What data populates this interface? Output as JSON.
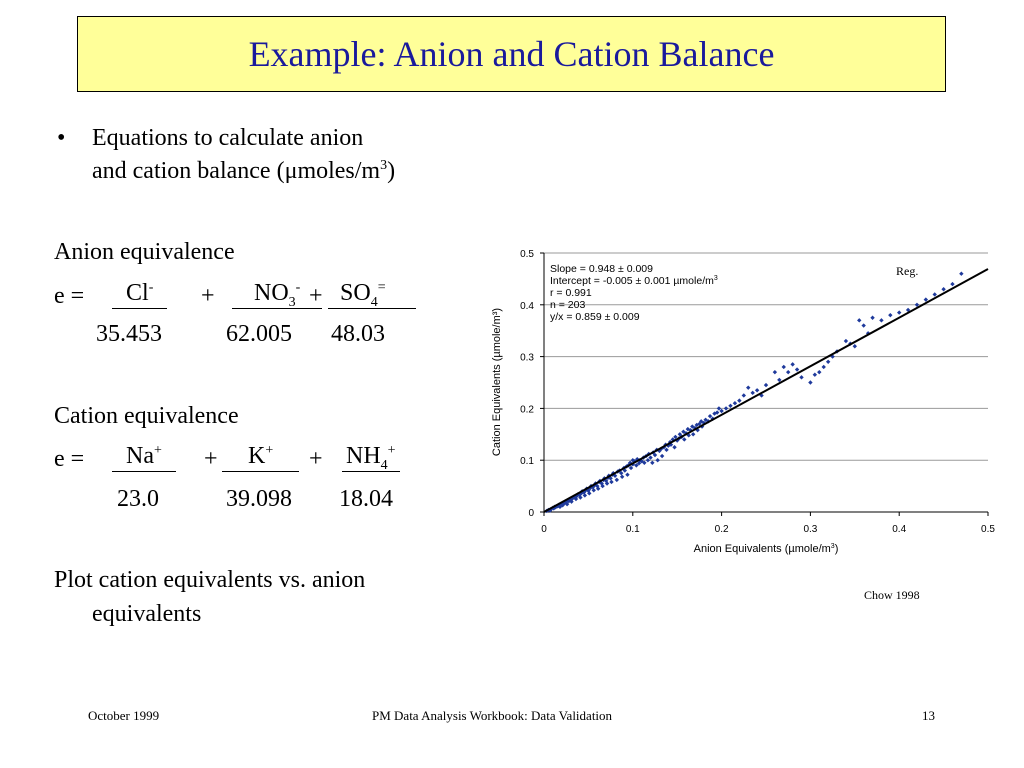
{
  "slide": {
    "title": "Example: Anion and Cation Balance",
    "bullet_symbol": "•",
    "bullet_line1": "Equations to calculate anion",
    "bullet_line2_prefix": "and cation balance (",
    "bullet_mu": "μ",
    "bullet_unit": "moles/m",
    "bullet_unit_sup": "3",
    "bullet_close": ")",
    "anion_heading": "Anion equivalence",
    "anion_e": "e =",
    "anion_plus1": "+",
    "anion_plus2": "+",
    "cl": "Cl",
    "cl_sup": "-",
    "no3": "NO",
    "no3_sub": "3",
    "no3_sup": "-",
    "so4": "SO",
    "so4_sub": "4",
    "so4_sup": "=",
    "anion_d1": "35.453",
    "anion_d2": "62.005",
    "anion_d3": "48.03",
    "cation_heading": "Cation equivalence",
    "cation_e": "e =",
    "cation_plus1": "+",
    "cation_plus2": "+",
    "na": "Na",
    "na_sup": "+",
    "k": "K",
    "k_sup": "+",
    "nh4": "NH",
    "nh4_sub": "4",
    "nh4_sup": "+",
    "cation_d1": "23.0",
    "cation_d2": "39.098",
    "cation_d3": "18.04",
    "plot_line1": "Plot cation equivalents vs. anion",
    "plot_line2": "equivalents",
    "reg_label": "Reg.",
    "chow_label": "Chow 1998"
  },
  "footer": {
    "date": "October 1999",
    "center": "PM Data Analysis Workbook:  Data Validation",
    "page": "13"
  },
  "chart_data": {
    "type": "scatter",
    "xlabel_main": "Anion Equivalents (µmole/m",
    "xlabel_sup": "3",
    "xlabel_close": ")",
    "ylabel": "Cation Equivalents (µmole/m³)",
    "xlim": [
      0,
      0.5
    ],
    "ylim": [
      0,
      0.5
    ],
    "xticks": [
      "0",
      "0.1",
      "0.2",
      "0.3",
      "0.4",
      "0.5"
    ],
    "yticks": [
      "0",
      "0.1",
      "0.2",
      "0.3",
      "0.4",
      "0.5"
    ],
    "grid": "horizontal",
    "point_color": "#1f3a9c",
    "annotation_lines": [
      "Slope = 0.948 ± 0.009",
      "Intercept = -0.005 ± 0.001 µmole/m",
      "r = 0.991",
      "n = 203",
      "y/x = 0.859 ± 0.009"
    ],
    "annotation_sup": "3",
    "regression": {
      "slope": 0.948,
      "intercept": -0.005
    },
    "points": [
      [
        0.003,
        0.002
      ],
      [
        0.005,
        0.004
      ],
      [
        0.007,
        0.003
      ],
      [
        0.008,
        0.006
      ],
      [
        0.01,
        0.008
      ],
      [
        0.011,
        0.007
      ],
      [
        0.012,
        0.01
      ],
      [
        0.013,
        0.009
      ],
      [
        0.015,
        0.011
      ],
      [
        0.016,
        0.012
      ],
      [
        0.017,
        0.014
      ],
      [
        0.018,
        0.01
      ],
      [
        0.02,
        0.016
      ],
      [
        0.021,
        0.013
      ],
      [
        0.022,
        0.018
      ],
      [
        0.023,
        0.017
      ],
      [
        0.025,
        0.02
      ],
      [
        0.026,
        0.015
      ],
      [
        0.027,
        0.022
      ],
      [
        0.028,
        0.021
      ],
      [
        0.03,
        0.024
      ],
      [
        0.031,
        0.02
      ],
      [
        0.032,
        0.026
      ],
      [
        0.033,
        0.028
      ],
      [
        0.035,
        0.03
      ],
      [
        0.036,
        0.025
      ],
      [
        0.037,
        0.031
      ],
      [
        0.038,
        0.034
      ],
      [
        0.04,
        0.033
      ],
      [
        0.041,
        0.028
      ],
      [
        0.042,
        0.036
      ],
      [
        0.043,
        0.04
      ],
      [
        0.045,
        0.038
      ],
      [
        0.046,
        0.032
      ],
      [
        0.047,
        0.042
      ],
      [
        0.048,
        0.045
      ],
      [
        0.05,
        0.041
      ],
      [
        0.051,
        0.036
      ],
      [
        0.052,
        0.046
      ],
      [
        0.053,
        0.05
      ],
      [
        0.055,
        0.048
      ],
      [
        0.056,
        0.042
      ],
      [
        0.057,
        0.052
      ],
      [
        0.058,
        0.055
      ],
      [
        0.06,
        0.05
      ],
      [
        0.061,
        0.045
      ],
      [
        0.062,
        0.058
      ],
      [
        0.063,
        0.06
      ],
      [
        0.065,
        0.055
      ],
      [
        0.066,
        0.05
      ],
      [
        0.067,
        0.062
      ],
      [
        0.068,
        0.065
      ],
      [
        0.07,
        0.06
      ],
      [
        0.071,
        0.055
      ],
      [
        0.072,
        0.066
      ],
      [
        0.073,
        0.07
      ],
      [
        0.075,
        0.065
      ],
      [
        0.076,
        0.058
      ],
      [
        0.077,
        0.072
      ],
      [
        0.078,
        0.075
      ],
      [
        0.08,
        0.07
      ],
      [
        0.082,
        0.062
      ],
      [
        0.083,
        0.078
      ],
      [
        0.085,
        0.08
      ],
      [
        0.087,
        0.075
      ],
      [
        0.088,
        0.068
      ],
      [
        0.09,
        0.085
      ],
      [
        0.091,
        0.08
      ],
      [
        0.093,
        0.088
      ],
      [
        0.094,
        0.072
      ],
      [
        0.095,
        0.09
      ],
      [
        0.097,
        0.095
      ],
      [
        0.098,
        0.085
      ],
      [
        0.1,
        0.092
      ],
      [
        0.1,
        0.1
      ],
      [
        0.102,
        0.098
      ],
      [
        0.104,
        0.09
      ],
      [
        0.105,
        0.102
      ],
      [
        0.107,
        0.094
      ],
      [
        0.108,
        0.1
      ],
      [
        0.11,
        0.098
      ],
      [
        0.112,
        0.105
      ],
      [
        0.113,
        0.095
      ],
      [
        0.115,
        0.108
      ],
      [
        0.117,
        0.1
      ],
      [
        0.118,
        0.112
      ],
      [
        0.12,
        0.105
      ],
      [
        0.122,
        0.095
      ],
      [
        0.123,
        0.115
      ],
      [
        0.125,
        0.11
      ],
      [
        0.127,
        0.12
      ],
      [
        0.128,
        0.1
      ],
      [
        0.13,
        0.118
      ],
      [
        0.132,
        0.122
      ],
      [
        0.133,
        0.108
      ],
      [
        0.135,
        0.125
      ],
      [
        0.137,
        0.13
      ],
      [
        0.138,
        0.12
      ],
      [
        0.14,
        0.128
      ],
      [
        0.142,
        0.135
      ],
      [
        0.143,
        0.13
      ],
      [
        0.145,
        0.14
      ],
      [
        0.147,
        0.125
      ],
      [
        0.148,
        0.145
      ],
      [
        0.15,
        0.138
      ],
      [
        0.152,
        0.142
      ],
      [
        0.153,
        0.15
      ],
      [
        0.155,
        0.145
      ],
      [
        0.157,
        0.155
      ],
      [
        0.158,
        0.14
      ],
      [
        0.16,
        0.152
      ],
      [
        0.162,
        0.16
      ],
      [
        0.163,
        0.148
      ],
      [
        0.165,
        0.158
      ],
      [
        0.167,
        0.165
      ],
      [
        0.168,
        0.15
      ],
      [
        0.17,
        0.162
      ],
      [
        0.172,
        0.168
      ],
      [
        0.173,
        0.158
      ],
      [
        0.175,
        0.17
      ],
      [
        0.177,
        0.175
      ],
      [
        0.178,
        0.165
      ],
      [
        0.18,
        0.172
      ],
      [
        0.182,
        0.178
      ],
      [
        0.185,
        0.175
      ],
      [
        0.187,
        0.185
      ],
      [
        0.19,
        0.18
      ],
      [
        0.192,
        0.19
      ],
      [
        0.195,
        0.192
      ],
      [
        0.197,
        0.2
      ],
      [
        0.2,
        0.195
      ],
      [
        0.205,
        0.2
      ],
      [
        0.21,
        0.205
      ],
      [
        0.215,
        0.21
      ],
      [
        0.22,
        0.215
      ],
      [
        0.225,
        0.225
      ],
      [
        0.23,
        0.24
      ],
      [
        0.235,
        0.23
      ],
      [
        0.24,
        0.235
      ],
      [
        0.245,
        0.225
      ],
      [
        0.25,
        0.245
      ],
      [
        0.26,
        0.27
      ],
      [
        0.265,
        0.255
      ],
      [
        0.27,
        0.28
      ],
      [
        0.275,
        0.27
      ],
      [
        0.28,
        0.285
      ],
      [
        0.285,
        0.275
      ],
      [
        0.29,
        0.26
      ],
      [
        0.3,
        0.25
      ],
      [
        0.305,
        0.265
      ],
      [
        0.31,
        0.27
      ],
      [
        0.315,
        0.28
      ],
      [
        0.32,
        0.29
      ],
      [
        0.325,
        0.3
      ],
      [
        0.33,
        0.31
      ],
      [
        0.34,
        0.33
      ],
      [
        0.345,
        0.325
      ],
      [
        0.35,
        0.32
      ],
      [
        0.355,
        0.37
      ],
      [
        0.36,
        0.36
      ],
      [
        0.365,
        0.345
      ],
      [
        0.37,
        0.375
      ],
      [
        0.38,
        0.37
      ],
      [
        0.39,
        0.38
      ],
      [
        0.4,
        0.385
      ],
      [
        0.41,
        0.39
      ],
      [
        0.42,
        0.4
      ],
      [
        0.43,
        0.41
      ],
      [
        0.44,
        0.42
      ],
      [
        0.45,
        0.43
      ],
      [
        0.46,
        0.44
      ],
      [
        0.47,
        0.46
      ]
    ]
  }
}
